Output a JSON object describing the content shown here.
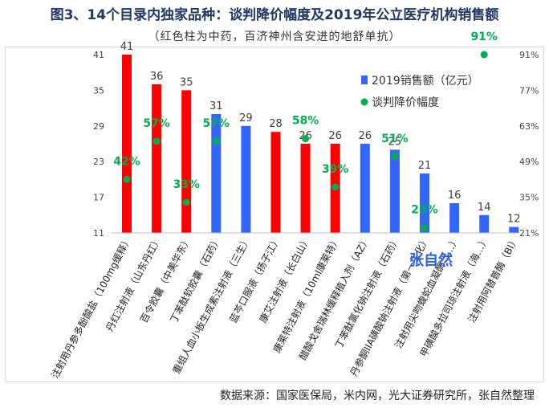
{
  "title": "图3、14个目录内独家品种：谈判降价幅度及2019年公立医疗机构销售额",
  "subtitle": "（红色柱为中药，百济神州含安进的地舒单抗）",
  "source": "数据来源：国家医保局，米内网，光大证券研究所，张自然整理",
  "watermark": "张自然",
  "colors": {
    "tcm": "#ff0000",
    "western": "#3366ff",
    "discount": "#00b050"
  },
  "chart_data": {
    "type": "bar",
    "categories": [
      "注射用丹参多酚酸盐（100mg缓释）",
      "丹红注射液（山东丹红）",
      "百令胶囊（中美华东）",
      "丁苯酞软胶囊（石药）",
      "重组人血小板生成素注射液（三生）",
      "蓝芩口服液（扬子江）",
      "康艾注射液（长白山）",
      "康莱特注射液（10ml康莱特）",
      "醋酸戈舍瑞林缓释植入剂（AZ）",
      "丁苯酞氯化钠注射液（石药）",
      "丹参酮IIA磺酸钠注射液（第一生化）",
      "注射用尖吻蝮蛇血凝酶（…）",
      "甲磺酸多拉司琼注射液（海…）",
      "注射用阿替普酶（BI）"
    ],
    "series": [
      {
        "name": "2019销售额（亿元）",
        "axis": "left",
        "values": [
          41,
          36,
          35,
          31,
          29,
          28,
          26,
          26,
          26,
          25,
          21,
          16,
          14,
          12
        ],
        "bar_colors": [
          "tcm",
          "tcm",
          "tcm",
          "western",
          "western",
          "tcm",
          "tcm",
          "tcm",
          "western",
          "western",
          "western",
          "western",
          "western",
          "western"
        ]
      },
      {
        "name": "谈判降价幅度",
        "axis": "right",
        "type": "scatter",
        "points": [
          {
            "index": 0,
            "value": 42,
            "label": "42%"
          },
          {
            "index": 1,
            "value": 57,
            "label": "57%"
          },
          {
            "index": 2,
            "value": 33,
            "label": "33%"
          },
          {
            "index": 3,
            "value": 57,
            "label": "57%"
          },
          {
            "index": 6,
            "value": 58,
            "label": "58%"
          },
          {
            "index": 7,
            "value": 39,
            "label": "39%"
          },
          {
            "index": 9,
            "value": 51,
            "label": "51%"
          },
          {
            "index": 10,
            "value": 23,
            "label": "23%"
          },
          {
            "index": 12,
            "value": 91,
            "label": "91%"
          }
        ]
      }
    ],
    "left_axis": {
      "min": 11,
      "max": 41,
      "ticks": [
        "11",
        "17",
        "23",
        "29",
        "35",
        "41"
      ]
    },
    "right_axis": {
      "min": 21,
      "max": 91,
      "ticks": [
        "21%",
        "35%",
        "49%",
        "63%",
        "77%",
        "91%"
      ]
    },
    "grid": false,
    "legend": "top-right"
  }
}
